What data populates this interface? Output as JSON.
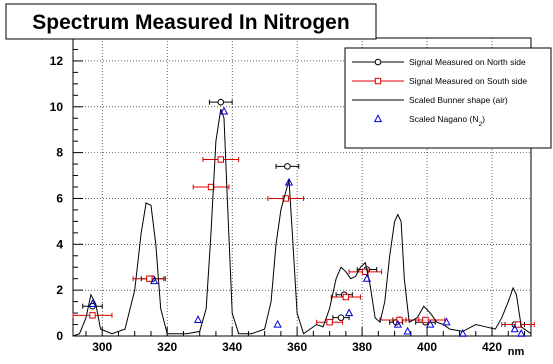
{
  "chart_data": {
    "type": "line",
    "title": "Spectrum Measured In Nitrogen",
    "xlabel": "nm",
    "ylabel": "",
    "xlim": [
      291,
      432
    ],
    "ylim": [
      0,
      13
    ],
    "x_ticks": [
      300,
      320,
      340,
      360,
      380,
      400,
      420
    ],
    "y_ticks": [
      0,
      2,
      4,
      6,
      8,
      10,
      12
    ],
    "grid": true,
    "legend_position": "top-right",
    "series": [
      {
        "name": "Signal Measured on North side",
        "marker": "open-circle",
        "color": "#000000",
        "points": [
          {
            "x": 297.0,
            "y": 1.3,
            "xerr": 3.0
          },
          {
            "x": 315.5,
            "y": 2.5,
            "xerr": 3.5
          },
          {
            "x": 336.5,
            "y": 10.2,
            "xerr": 3.5
          },
          {
            "x": 357.0,
            "y": 7.4,
            "xerr": 3.5
          },
          {
            "x": 373.5,
            "y": 0.8,
            "xerr": 2.5
          },
          {
            "x": 374.5,
            "y": 1.8,
            "xerr": 2.5
          },
          {
            "x": 381.5,
            "y": 2.9,
            "xerr": 3.0
          },
          {
            "x": 390.5,
            "y": 0.6,
            "xerr": 2.0
          },
          {
            "x": 391.5,
            "y": 0.7,
            "xerr": 2.0
          },
          {
            "x": 399.5,
            "y": 0.6,
            "xerr": 3.0
          },
          {
            "x": 427.0,
            "y": 0.5,
            "xerr": 3.0
          }
        ]
      },
      {
        "name": "Signal Measured on South side",
        "marker": "open-square",
        "color": "#dd0000",
        "points": [
          {
            "x": 297.0,
            "y": 0.9,
            "xerr": 6.0
          },
          {
            "x": 314.5,
            "y": 2.5,
            "xerr": 5.0
          },
          {
            "x": 333.5,
            "y": 6.5,
            "xerr": 5.5
          },
          {
            "x": 336.5,
            "y": 7.7,
            "xerr": 5.5
          },
          {
            "x": 356.5,
            "y": 6.0,
            "xerr": 5.5
          },
          {
            "x": 370.0,
            "y": 0.6,
            "xerr": 4.0
          },
          {
            "x": 375.0,
            "y": 1.7,
            "xerr": 4.5
          },
          {
            "x": 381.0,
            "y": 2.8,
            "xerr": 5.0
          },
          {
            "x": 391.5,
            "y": 0.7,
            "xerr": 6.0
          },
          {
            "x": 399.5,
            "y": 0.7,
            "xerr": 6.0
          },
          {
            "x": 428.0,
            "y": 0.5,
            "xerr": 5.0
          }
        ]
      },
      {
        "name": "Scaled Bunner shape (air)",
        "marker": "none",
        "color": "#000000",
        "points": [
          {
            "x": 291,
            "y": 0.0
          },
          {
            "x": 293,
            "y": 0.1
          },
          {
            "x": 295,
            "y": 0.8
          },
          {
            "x": 296.5,
            "y": 1.8
          },
          {
            "x": 298,
            "y": 1.4
          },
          {
            "x": 299.5,
            "y": 0.3
          },
          {
            "x": 303,
            "y": 0.1
          },
          {
            "x": 307,
            "y": 0.3
          },
          {
            "x": 310,
            "y": 2.0
          },
          {
            "x": 312,
            "y": 4.5
          },
          {
            "x": 313.5,
            "y": 5.8
          },
          {
            "x": 315,
            "y": 5.7
          },
          {
            "x": 316.5,
            "y": 4.0
          },
          {
            "x": 318,
            "y": 1.2
          },
          {
            "x": 320,
            "y": 0.1
          },
          {
            "x": 326,
            "y": 0.1
          },
          {
            "x": 330,
            "y": 0.2
          },
          {
            "x": 332,
            "y": 1.2
          },
          {
            "x": 333.5,
            "y": 4.5
          },
          {
            "x": 335,
            "y": 8.5
          },
          {
            "x": 336.5,
            "y": 9.9
          },
          {
            "x": 337.5,
            "y": 9.5
          },
          {
            "x": 338.5,
            "y": 6.0
          },
          {
            "x": 340,
            "y": 1.0
          },
          {
            "x": 342,
            "y": 0.1
          },
          {
            "x": 346,
            "y": 0.1
          },
          {
            "x": 350,
            "y": 0.3
          },
          {
            "x": 352,
            "y": 1.5
          },
          {
            "x": 353.5,
            "y": 4.0
          },
          {
            "x": 355,
            "y": 5.5
          },
          {
            "x": 356.5,
            "y": 6.3
          },
          {
            "x": 357.5,
            "y": 6.8
          },
          {
            "x": 358.5,
            "y": 4.5
          },
          {
            "x": 360,
            "y": 1.0
          },
          {
            "x": 362,
            "y": 0.1
          },
          {
            "x": 366,
            "y": 0.5
          },
          {
            "x": 368,
            "y": 0.4
          },
          {
            "x": 370,
            "y": 1.2
          },
          {
            "x": 372,
            "y": 2.5
          },
          {
            "x": 373.5,
            "y": 3.0
          },
          {
            "x": 375,
            "y": 2.8
          },
          {
            "x": 376.5,
            "y": 2.5
          },
          {
            "x": 378,
            "y": 2.6
          },
          {
            "x": 379.5,
            "y": 3.0
          },
          {
            "x": 381,
            "y": 3.2
          },
          {
            "x": 382.5,
            "y": 2.2
          },
          {
            "x": 384,
            "y": 0.8
          },
          {
            "x": 385.5,
            "y": 0.6
          },
          {
            "x": 387,
            "y": 1.5
          },
          {
            "x": 388.5,
            "y": 3.5
          },
          {
            "x": 390,
            "y": 5.0
          },
          {
            "x": 391,
            "y": 5.3
          },
          {
            "x": 392,
            "y": 5.0
          },
          {
            "x": 393,
            "y": 2.5
          },
          {
            "x": 394.5,
            "y": 0.6
          },
          {
            "x": 397,
            "y": 0.8
          },
          {
            "x": 399,
            "y": 1.3
          },
          {
            "x": 401,
            "y": 1.0
          },
          {
            "x": 403,
            "y": 0.6
          },
          {
            "x": 405,
            "y": 0.5
          },
          {
            "x": 407,
            "y": 0.3
          },
          {
            "x": 411,
            "y": 0.2
          },
          {
            "x": 415,
            "y": 0.5
          },
          {
            "x": 418,
            "y": 0.4
          },
          {
            "x": 421,
            "y": 0.3
          },
          {
            "x": 423,
            "y": 0.8
          },
          {
            "x": 425,
            "y": 1.5
          },
          {
            "x": 426.5,
            "y": 2.1
          },
          {
            "x": 427.5,
            "y": 1.8
          },
          {
            "x": 429,
            "y": 0.4
          },
          {
            "x": 432,
            "y": 0.1
          }
        ]
      },
      {
        "name": "Scaled Nagano (N",
        "name_sub": "2",
        "name_suffix": ")",
        "marker": "open-triangle",
        "color": "#0000dd",
        "points": [
          {
            "x": 297.0,
            "y": 1.4
          },
          {
            "x": 316.0,
            "y": 2.4
          },
          {
            "x": 329.5,
            "y": 0.7
          },
          {
            "x": 337.5,
            "y": 9.8
          },
          {
            "x": 354.0,
            "y": 0.5
          },
          {
            "x": 357.5,
            "y": 6.7
          },
          {
            "x": 376.0,
            "y": 1.0
          },
          {
            "x": 381.5,
            "y": 2.5
          },
          {
            "x": 391.0,
            "y": 0.5
          },
          {
            "x": 394.0,
            "y": 0.2
          },
          {
            "x": 401.0,
            "y": 0.5
          },
          {
            "x": 406.0,
            "y": 0.6
          },
          {
            "x": 411.0,
            "y": 0.1
          },
          {
            "x": 427.0,
            "y": 0.3
          },
          {
            "x": 429.0,
            "y": 0.1
          }
        ]
      }
    ]
  }
}
